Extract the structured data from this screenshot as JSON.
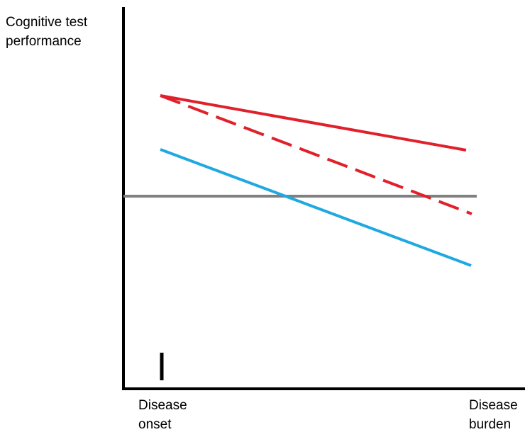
{
  "labels": {
    "y_axis_line1": "Cognitive test",
    "y_axis_line2": "performance",
    "onset_line1": "Disease",
    "onset_line2": "onset",
    "burden_line1": "Disease",
    "burden_line2": "burden"
  },
  "colors": {
    "axis": "#000000",
    "baseline": "#808080",
    "red": "#e0202a",
    "blue": "#20a8e0"
  },
  "lines": [
    {
      "id": "gray-baseline",
      "style": "solid",
      "color": "gray"
    },
    {
      "id": "red-solid",
      "style": "solid",
      "color": "red"
    },
    {
      "id": "red-dashed",
      "style": "dashed",
      "color": "red"
    },
    {
      "id": "blue-solid",
      "style": "solid",
      "color": "blue"
    }
  ]
}
